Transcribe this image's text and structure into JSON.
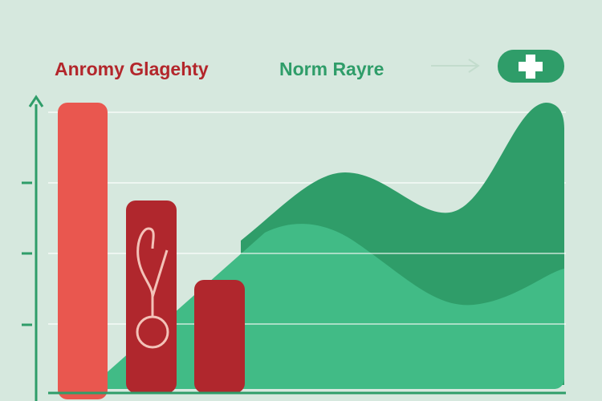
{
  "header": {
    "left_label": "Anromy Glagehty",
    "right_label": "Norm Rayre"
  }
}
